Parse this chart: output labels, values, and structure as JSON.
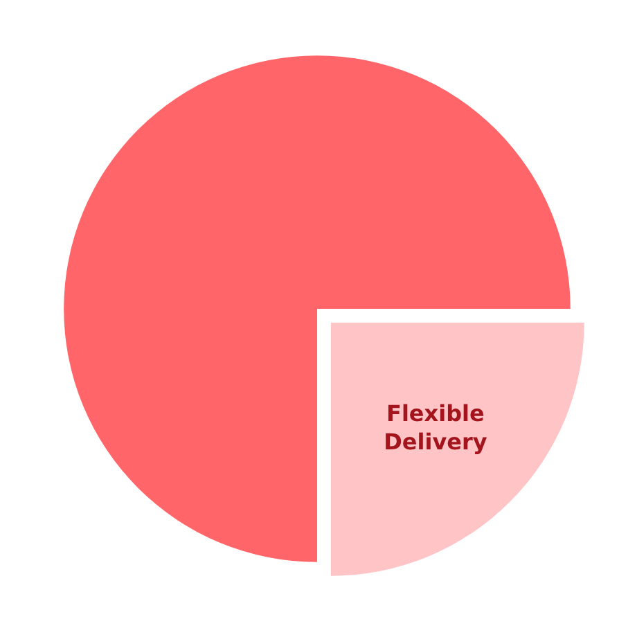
{
  "chart_data": {
    "type": "pie",
    "categories": [
      null,
      "Flexible Delivery"
    ],
    "values": [
      75,
      25
    ],
    "colors": [
      "#ff6569",
      "#ffc4c6"
    ]
  }
}
